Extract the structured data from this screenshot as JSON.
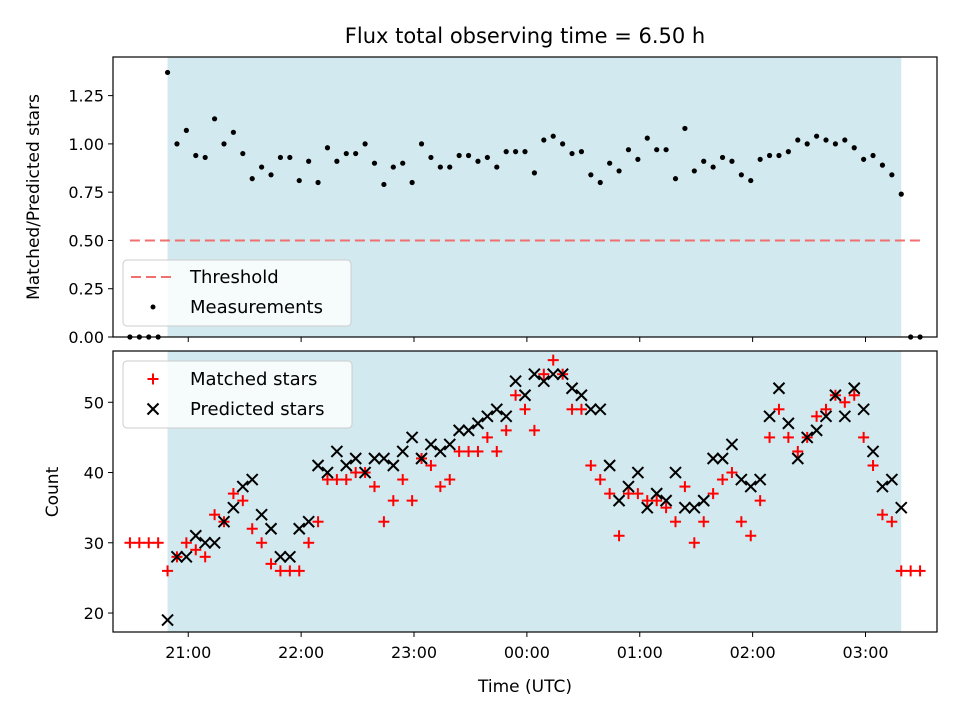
{
  "chart_data": [
    {
      "type": "scatter",
      "title": "Flux total observing time = 6.50 h",
      "xlabel": "",
      "ylabel": "Matched/Predicted stars",
      "ylim": [
        0,
        1.45
      ],
      "yticks": [
        "0.00",
        "0.25",
        "0.50",
        "0.75",
        "1.00",
        "1.25"
      ],
      "observing_window": [
        "20:49",
        "03:19"
      ],
      "shade_color": "#d2e9ef",
      "legend_position": "lower-left",
      "threshold": {
        "name": "Threshold",
        "value": 0.5,
        "x_range": [
          "20:29",
          "03:29"
        ],
        "color": "#f07070"
      },
      "series": [
        {
          "name": "Measurements",
          "color": "#000000",
          "points": [
            [
              "20:29",
              0.0
            ],
            [
              "20:34",
              0.0
            ],
            [
              "20:39",
              0.0
            ],
            [
              "20:44",
              0.0
            ],
            [
              "20:49",
              1.37
            ],
            [
              "20:54",
              1.0
            ],
            [
              "20:59",
              1.07
            ],
            [
              "21:04",
              0.94
            ],
            [
              "21:09",
              0.93
            ],
            [
              "21:14",
              1.13
            ],
            [
              "21:19",
              1.0
            ],
            [
              "21:24",
              1.06
            ],
            [
              "21:29",
              0.95
            ],
            [
              "21:34",
              0.82
            ],
            [
              "21:39",
              0.88
            ],
            [
              "21:44",
              0.84
            ],
            [
              "21:49",
              0.93
            ],
            [
              "21:54",
              0.93
            ],
            [
              "21:59",
              0.81
            ],
            [
              "22:04",
              0.91
            ],
            [
              "22:09",
              0.8
            ],
            [
              "22:14",
              0.98
            ],
            [
              "22:19",
              0.91
            ],
            [
              "22:24",
              0.95
            ],
            [
              "22:29",
              0.95
            ],
            [
              "22:34",
              1.0
            ],
            [
              "22:39",
              0.9
            ],
            [
              "22:44",
              0.79
            ],
            [
              "22:49",
              0.88
            ],
            [
              "22:54",
              0.9
            ],
            [
              "22:59",
              0.8
            ],
            [
              "23:04",
              1.0
            ],
            [
              "23:09",
              0.93
            ],
            [
              "23:14",
              0.88
            ],
            [
              "23:19",
              0.88
            ],
            [
              "23:24",
              0.94
            ],
            [
              "23:29",
              0.94
            ],
            [
              "23:34",
              0.91
            ],
            [
              "23:39",
              0.93
            ],
            [
              "23:44",
              0.88
            ],
            [
              "23:49",
              0.96
            ],
            [
              "23:54",
              0.96
            ],
            [
              "23:59",
              0.96
            ],
            [
              "00:04",
              0.85
            ],
            [
              "00:09",
              1.02
            ],
            [
              "00:14",
              1.04
            ],
            [
              "00:19",
              1.0
            ],
            [
              "00:24",
              0.95
            ],
            [
              "00:29",
              0.96
            ],
            [
              "00:34",
              0.84
            ],
            [
              "00:39",
              0.8
            ],
            [
              "00:44",
              0.9
            ],
            [
              "00:49",
              0.86
            ],
            [
              "00:54",
              0.97
            ],
            [
              "00:59",
              0.92
            ],
            [
              "01:04",
              1.03
            ],
            [
              "01:09",
              0.97
            ],
            [
              "01:14",
              0.97
            ],
            [
              "01:19",
              0.82
            ],
            [
              "01:24",
              1.08
            ],
            [
              "01:29",
              0.86
            ],
            [
              "01:34",
              0.91
            ],
            [
              "01:39",
              0.88
            ],
            [
              "01:44",
              0.93
            ],
            [
              "01:49",
              0.91
            ],
            [
              "01:54",
              0.84
            ],
            [
              "01:59",
              0.81
            ],
            [
              "02:04",
              0.92
            ],
            [
              "02:09",
              0.94
            ],
            [
              "02:14",
              0.94
            ],
            [
              "02:19",
              0.96
            ],
            [
              "02:24",
              1.02
            ],
            [
              "02:29",
              1.0
            ],
            [
              "02:34",
              1.04
            ],
            [
              "02:39",
              1.02
            ],
            [
              "02:44",
              1.0
            ],
            [
              "02:49",
              1.02
            ],
            [
              "02:54",
              0.98
            ],
            [
              "02:59",
              0.92
            ],
            [
              "03:04",
              0.94
            ],
            [
              "03:09",
              0.89
            ],
            [
              "03:14",
              0.84
            ],
            [
              "03:19",
              0.74
            ],
            [
              "03:24",
              0.0
            ],
            [
              "03:29",
              0.0
            ]
          ]
        }
      ]
    },
    {
      "type": "scatter",
      "title": "",
      "xlabel": "Time (UTC)",
      "ylabel": "Count",
      "ylim": [
        17.3,
        57.3
      ],
      "yticks": [
        "20",
        "30",
        "40",
        "50"
      ],
      "xticks": [
        "21:00",
        "22:00",
        "23:00",
        "00:00",
        "01:00",
        "02:00",
        "03:00"
      ],
      "observing_window": [
        "20:49",
        "03:19"
      ],
      "legend_position": "upper-left",
      "series": [
        {
          "name": "Matched stars",
          "marker": "plus",
          "color": "#ff0000",
          "points": [
            [
              "20:29",
              30
            ],
            [
              "20:34",
              30
            ],
            [
              "20:39",
              30
            ],
            [
              "20:44",
              30
            ],
            [
              "20:49",
              26
            ],
            [
              "20:54",
              28
            ],
            [
              "20:59",
              30
            ],
            [
              "21:04",
              29
            ],
            [
              "21:09",
              28
            ],
            [
              "21:14",
              34
            ],
            [
              "21:19",
              33
            ],
            [
              "21:24",
              37
            ],
            [
              "21:29",
              36
            ],
            [
              "21:34",
              32
            ],
            [
              "21:39",
              30
            ],
            [
              "21:44",
              27
            ],
            [
              "21:49",
              26
            ],
            [
              "21:54",
              26
            ],
            [
              "21:59",
              26
            ],
            [
              "22:04",
              30
            ],
            [
              "22:09",
              33
            ],
            [
              "22:14",
              39
            ],
            [
              "22:19",
              39
            ],
            [
              "22:24",
              39
            ],
            [
              "22:29",
              40
            ],
            [
              "22:34",
              40
            ],
            [
              "22:39",
              38
            ],
            [
              "22:44",
              33
            ],
            [
              "22:49",
              36
            ],
            [
              "22:54",
              39
            ],
            [
              "22:59",
              36
            ],
            [
              "23:04",
              42
            ],
            [
              "23:09",
              41
            ],
            [
              "23:14",
              38
            ],
            [
              "23:19",
              39
            ],
            [
              "23:24",
              43
            ],
            [
              "23:29",
              43
            ],
            [
              "23:34",
              43
            ],
            [
              "23:39",
              45
            ],
            [
              "23:44",
              43
            ],
            [
              "23:49",
              46
            ],
            [
              "23:54",
              51
            ],
            [
              "23:59",
              49
            ],
            [
              "00:04",
              46
            ],
            [
              "00:09",
              54
            ],
            [
              "00:14",
              56
            ],
            [
              "00:19",
              54
            ],
            [
              "00:24",
              49
            ],
            [
              "00:29",
              49
            ],
            [
              "00:34",
              41
            ],
            [
              "00:39",
              39
            ],
            [
              "00:44",
              37
            ],
            [
              "00:49",
              31
            ],
            [
              "00:54",
              37
            ],
            [
              "00:59",
              37
            ],
            [
              "01:04",
              36
            ],
            [
              "01:09",
              36
            ],
            [
              "01:14",
              35
            ],
            [
              "01:19",
              33
            ],
            [
              "01:24",
              38
            ],
            [
              "01:29",
              30
            ],
            [
              "01:34",
              33
            ],
            [
              "01:39",
              37
            ],
            [
              "01:44",
              39
            ],
            [
              "01:49",
              40
            ],
            [
              "01:54",
              33
            ],
            [
              "01:59",
              31
            ],
            [
              "02:04",
              36
            ],
            [
              "02:09",
              45
            ],
            [
              "02:14",
              49
            ],
            [
              "02:19",
              45
            ],
            [
              "02:24",
              43
            ],
            [
              "02:29",
              45
            ],
            [
              "02:34",
              48
            ],
            [
              "02:39",
              49
            ],
            [
              "02:44",
              51
            ],
            [
              "02:49",
              50
            ],
            [
              "02:54",
              51
            ],
            [
              "02:59",
              45
            ],
            [
              "03:04",
              41
            ],
            [
              "03:09",
              34
            ],
            [
              "03:14",
              33
            ],
            [
              "03:19",
              26
            ],
            [
              "03:24",
              26
            ],
            [
              "03:29",
              26
            ]
          ]
        },
        {
          "name": "Predicted stars",
          "marker": "x",
          "color": "#000000",
          "points": [
            [
              "20:49",
              19
            ],
            [
              "20:54",
              28
            ],
            [
              "20:59",
              28
            ],
            [
              "21:04",
              31
            ],
            [
              "21:09",
              30
            ],
            [
              "21:14",
              30
            ],
            [
              "21:19",
              33
            ],
            [
              "21:24",
              35
            ],
            [
              "21:29",
              38
            ],
            [
              "21:34",
              39
            ],
            [
              "21:39",
              34
            ],
            [
              "21:44",
              32
            ],
            [
              "21:49",
              28
            ],
            [
              "21:54",
              28
            ],
            [
              "21:59",
              32
            ],
            [
              "22:04",
              33
            ],
            [
              "22:09",
              41
            ],
            [
              "22:14",
              40
            ],
            [
              "22:19",
              43
            ],
            [
              "22:24",
              41
            ],
            [
              "22:29",
              42
            ],
            [
              "22:34",
              40
            ],
            [
              "22:39",
              42
            ],
            [
              "22:44",
              42
            ],
            [
              "22:49",
              41
            ],
            [
              "22:54",
              43
            ],
            [
              "22:59",
              45
            ],
            [
              "23:04",
              42
            ],
            [
              "23:09",
              44
            ],
            [
              "23:14",
              43
            ],
            [
              "23:19",
              44
            ],
            [
              "23:24",
              46
            ],
            [
              "23:29",
              46
            ],
            [
              "23:34",
              47
            ],
            [
              "23:39",
              48
            ],
            [
              "23:44",
              49
            ],
            [
              "23:49",
              48
            ],
            [
              "23:54",
              53
            ],
            [
              "23:59",
              51
            ],
            [
              "00:04",
              54
            ],
            [
              "00:09",
              53
            ],
            [
              "00:14",
              54
            ],
            [
              "00:19",
              54
            ],
            [
              "00:24",
              52
            ],
            [
              "00:29",
              51
            ],
            [
              "00:34",
              49
            ],
            [
              "00:39",
              49
            ],
            [
              "00:44",
              41
            ],
            [
              "00:49",
              36
            ],
            [
              "00:54",
              38
            ],
            [
              "00:59",
              40
            ],
            [
              "01:04",
              35
            ],
            [
              "01:09",
              37
            ],
            [
              "01:14",
              36
            ],
            [
              "01:19",
              40
            ],
            [
              "01:24",
              35
            ],
            [
              "01:29",
              35
            ],
            [
              "01:34",
              36
            ],
            [
              "01:39",
              42
            ],
            [
              "01:44",
              42
            ],
            [
              "01:49",
              44
            ],
            [
              "01:54",
              39
            ],
            [
              "01:59",
              38
            ],
            [
              "02:04",
              39
            ],
            [
              "02:09",
              48
            ],
            [
              "02:14",
              52
            ],
            [
              "02:19",
              47
            ],
            [
              "02:24",
              42
            ],
            [
              "02:29",
              45
            ],
            [
              "02:34",
              46
            ],
            [
              "02:39",
              48
            ],
            [
              "02:44",
              51
            ],
            [
              "02:49",
              48
            ],
            [
              "02:54",
              52
            ],
            [
              "02:59",
              49
            ],
            [
              "03:04",
              43
            ],
            [
              "03:09",
              38
            ],
            [
              "03:14",
              39
            ],
            [
              "03:19",
              35
            ]
          ]
        }
      ]
    }
  ]
}
